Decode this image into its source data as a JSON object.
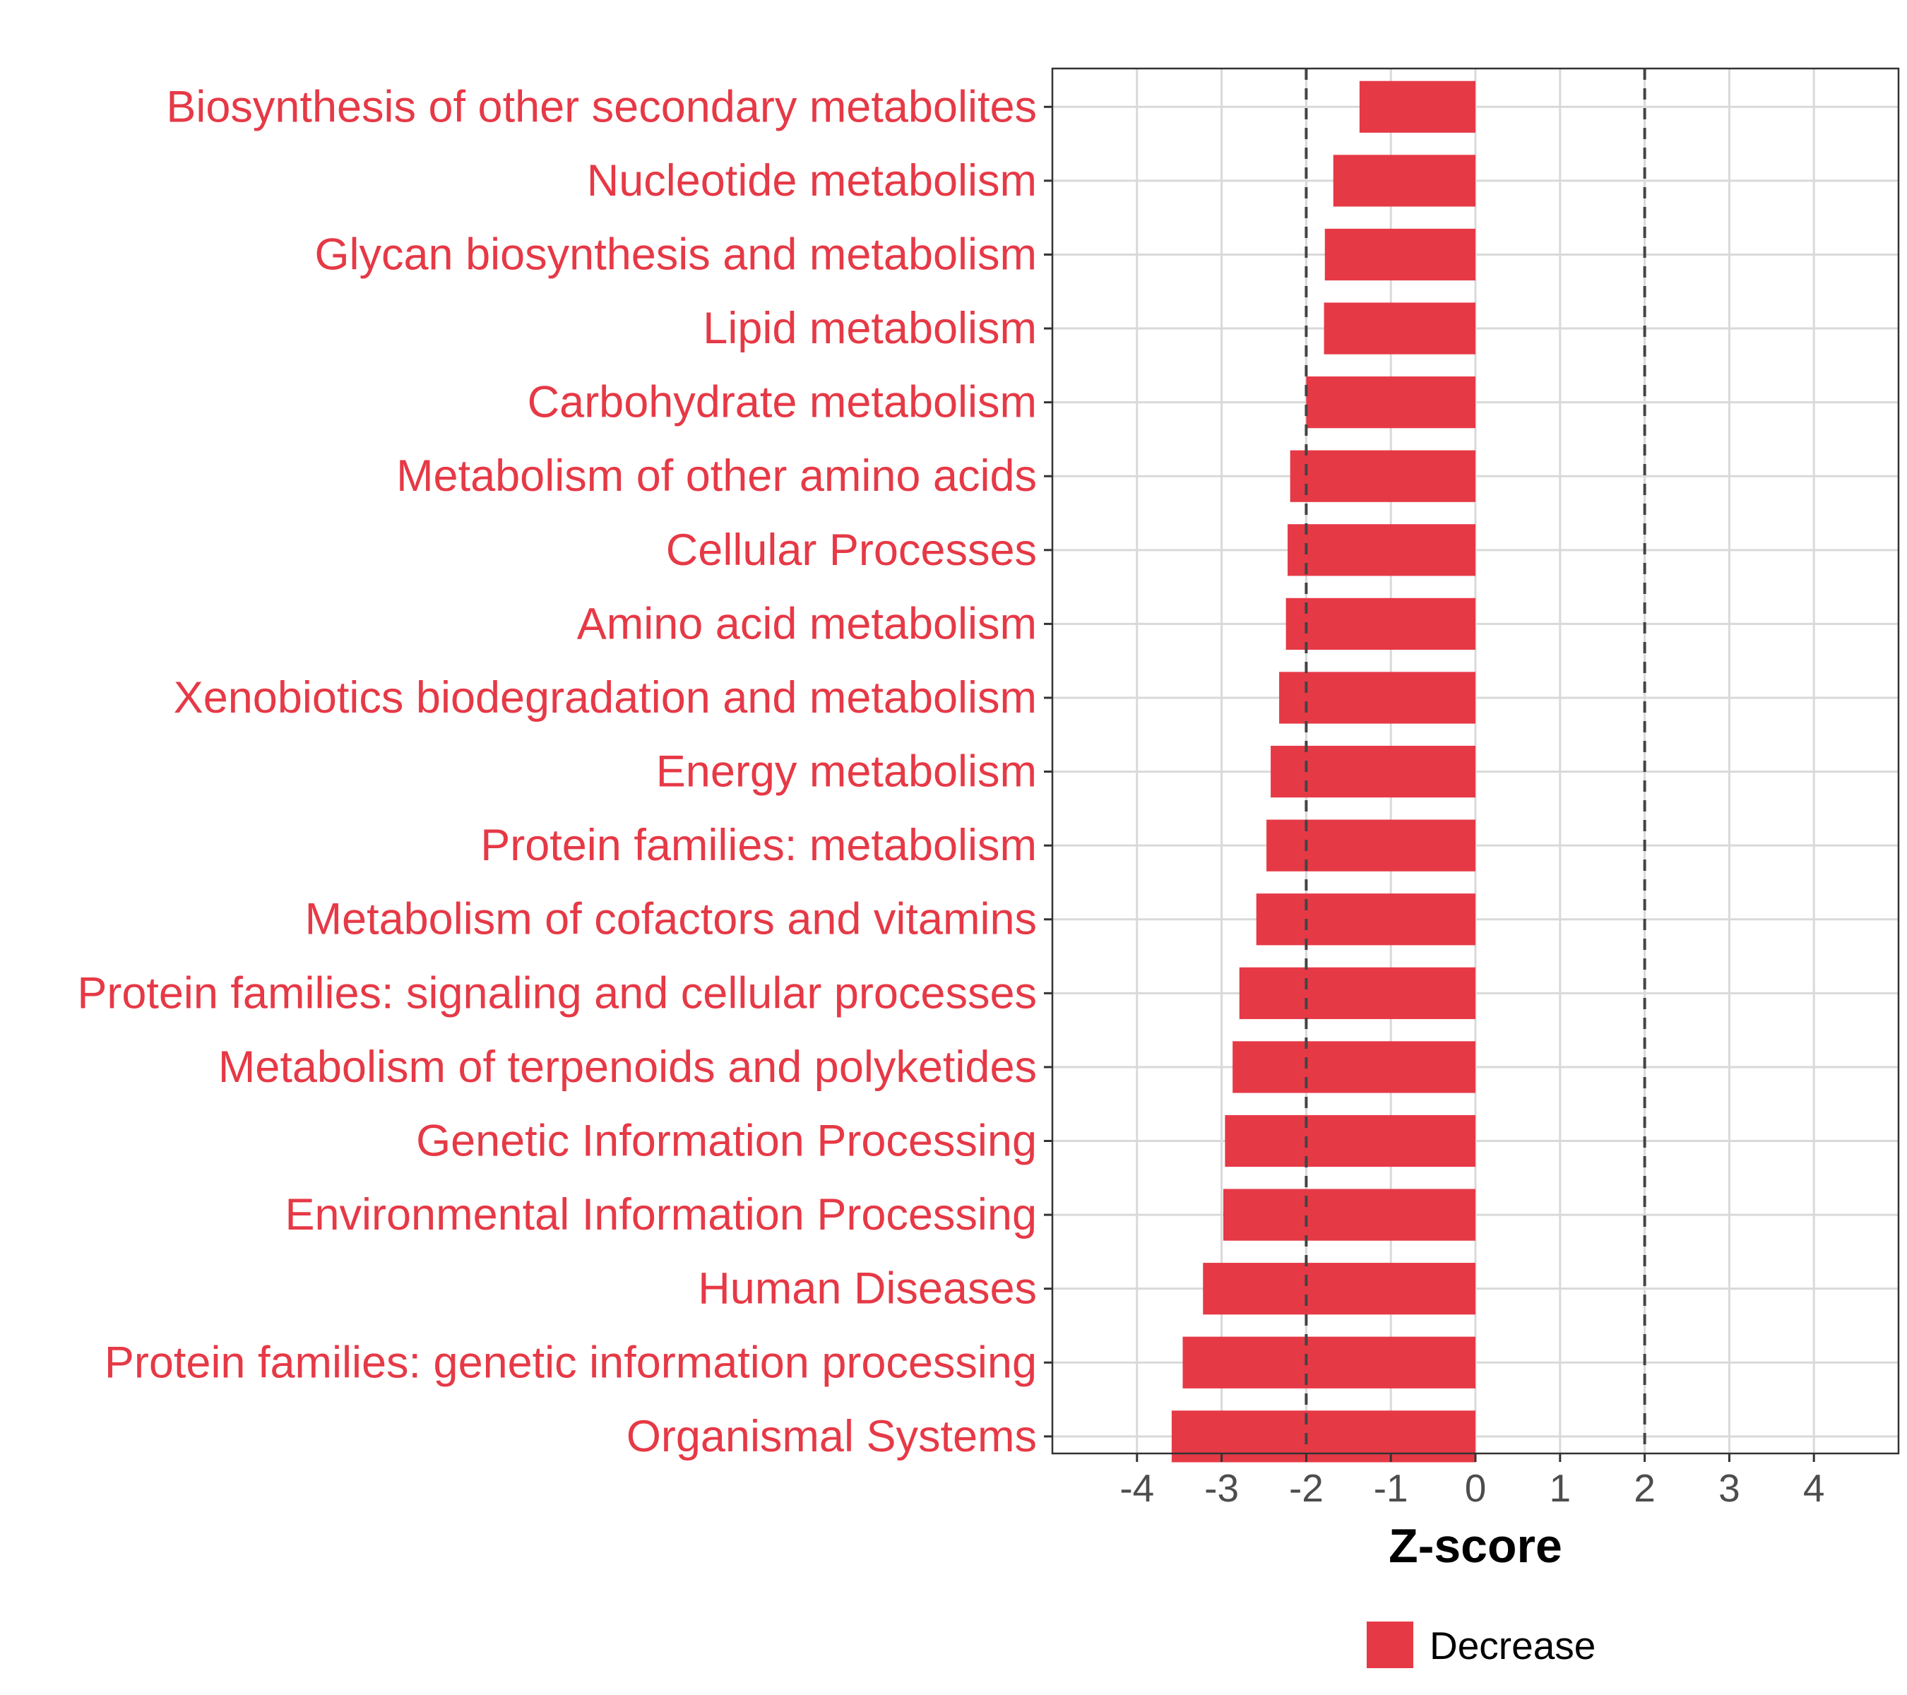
{
  "chart_data": {
    "type": "bar",
    "orientation": "horizontal",
    "categories": [
      "Biosynthesis of other secondary metabolites",
      "Nucleotide metabolism",
      "Glycan biosynthesis and metabolism",
      "Lipid metabolism",
      "Carbohydrate metabolism",
      "Metabolism of other amino acids",
      "Cellular Processes",
      "Amino acid metabolism",
      "Xenobiotics biodegradation and metabolism",
      "Energy metabolism",
      "Protein families: metabolism",
      "Metabolism of cofactors and vitamins",
      "Protein families: signaling and cellular processes",
      "Metabolism of terpenoids and polyketides",
      "Genetic Information Processing",
      "Environmental Information Processing",
      "Human Diseases",
      "Protein families: genetic information processing",
      "Organismal Systems"
    ],
    "values": [
      -1.37,
      -1.68,
      -1.78,
      -1.79,
      -2.0,
      -2.19,
      -2.22,
      -2.24,
      -2.32,
      -2.42,
      -2.47,
      -2.59,
      -2.79,
      -2.87,
      -2.96,
      -2.98,
      -3.22,
      -3.46,
      -3.59
    ],
    "xlabel": "Z-score",
    "ylabel": "",
    "xlim": [
      -5,
      5
    ],
    "xticks": [
      -4,
      -3,
      -2,
      -1,
      0,
      1,
      2,
      3,
      4
    ],
    "reference_lines": [
      -2,
      2
    ],
    "grid": true,
    "legend": {
      "position": "bottom",
      "entries": [
        {
          "label": "Decrease",
          "color": "#E63946"
        }
      ]
    },
    "colors": {
      "bar": "#E63946",
      "label": "#E63946"
    }
  }
}
